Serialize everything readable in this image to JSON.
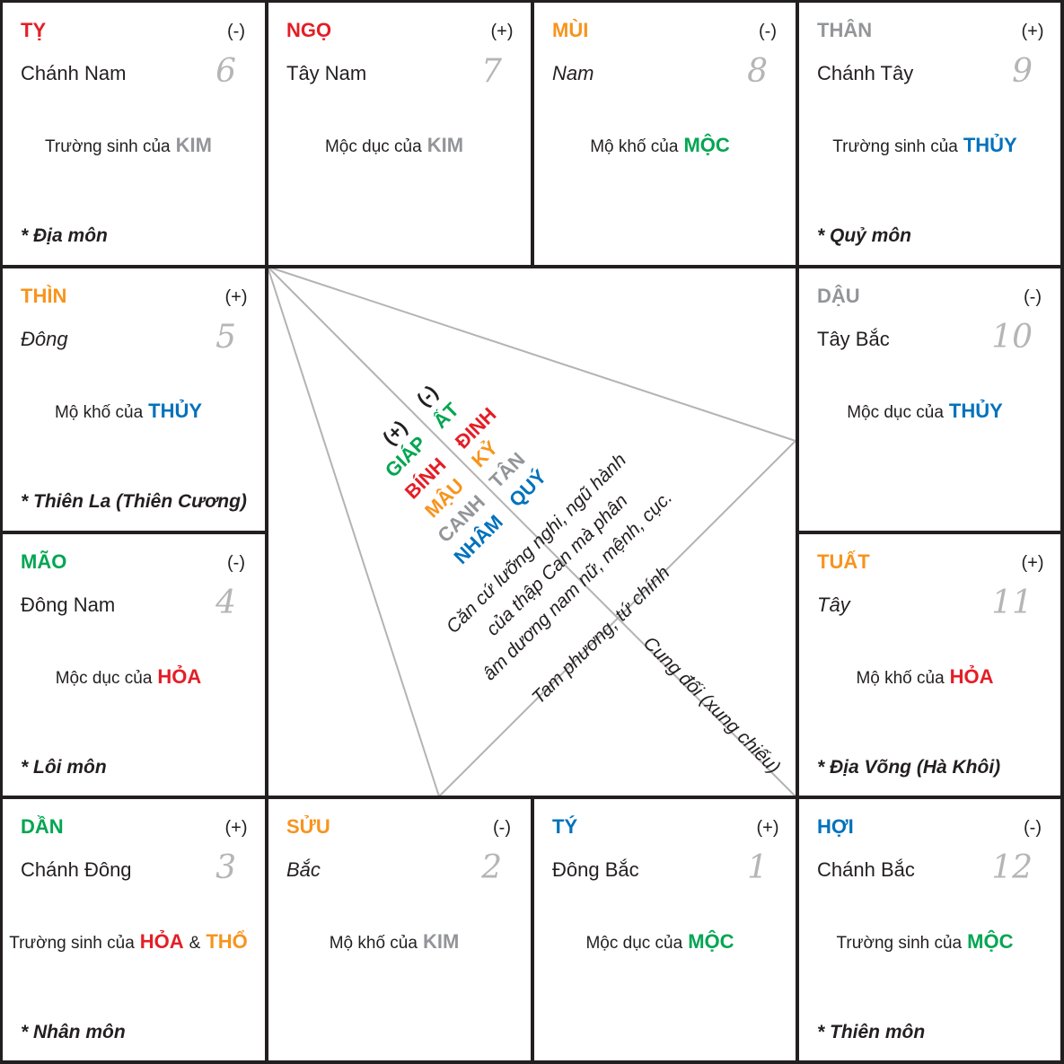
{
  "palaces": [
    {
      "name": "TỴ",
      "name_color": "#e41e26",
      "polarity": "(-)",
      "direction": "Chánh Nam",
      "number": 6,
      "stage": "Trường sinh của",
      "elements": [
        {
          "text": "KIM",
          "color": "#939598"
        }
      ],
      "gate": "* Địa môn"
    },
    {
      "name": "NGỌ",
      "name_color": "#e41e26",
      "polarity": "(+)",
      "direction": "Tây Nam",
      "number": 7,
      "stage": "Mộc dục của",
      "elements": [
        {
          "text": "KIM",
          "color": "#939598"
        }
      ]
    },
    {
      "name": "MÙI",
      "name_color": "#f7941d",
      "polarity": "(-)",
      "direction": "Nam",
      "number": 8,
      "stage": "Mộ khố của",
      "elements": [
        {
          "text": "MỘC",
          "color": "#00a651"
        }
      ]
    },
    {
      "name": "THÂN",
      "name_color": "#939598",
      "polarity": "(+)",
      "direction": "Chánh Tây",
      "number": 9,
      "stage": "Trường sinh của",
      "elements": [
        {
          "text": "THỦY",
          "color": "#0072bc"
        }
      ],
      "gate": "* Quỷ môn"
    },
    {
      "name": "THÌN",
      "name_color": "#f7941d",
      "polarity": "(+)",
      "direction": "Đông",
      "number": 5,
      "stage": "Mộ khố của",
      "elements": [
        {
          "text": "THỦY",
          "color": "#0072bc"
        }
      ],
      "gate": "* Thiên La (Thiên Cương)"
    },
    {
      "name": "DẬU",
      "name_color": "#939598",
      "polarity": "(-)",
      "direction": "Tây Bắc",
      "number": 10,
      "stage": "Mộc dục của",
      "elements": [
        {
          "text": "THỦY",
          "color": "#0072bc"
        }
      ]
    },
    {
      "name": "MÃO",
      "name_color": "#00a651",
      "polarity": "(-)",
      "direction": "Đông Nam",
      "number": 4,
      "stage": "Mộc dục của",
      "elements": [
        {
          "text": "HỎA",
          "color": "#e41e26"
        }
      ],
      "gate": "* Lôi môn"
    },
    {
      "name": "TUẤT",
      "name_color": "#f7941d",
      "polarity": "(+)",
      "direction": "Tây",
      "number": 11,
      "stage": "Mộ khố của",
      "elements": [
        {
          "text": "HỎA",
          "color": "#e41e26"
        }
      ],
      "gate": "* Địa Võng (Hà Khôi)"
    },
    {
      "name": "DẦN",
      "name_color": "#00a651",
      "polarity": "(+)",
      "direction": "Chánh Đông",
      "number": 3,
      "stage": "Trường sinh của",
      "elements": [
        {
          "text": "HỎA",
          "color": "#e41e26"
        },
        {
          "text": "THỔ",
          "color": "#f7941d"
        }
      ],
      "joiner": "&",
      "gate": "* Nhân môn"
    },
    {
      "name": "SỬU",
      "name_color": "#f7941d",
      "polarity": "(-)",
      "direction": "Bắc",
      "number": 2,
      "stage": "Mộ khố của",
      "elements": [
        {
          "text": "KIM",
          "color": "#939598"
        }
      ]
    },
    {
      "name": "TÝ",
      "name_color": "#0072bc",
      "polarity": "(+)",
      "direction": "Đông Bắc",
      "number": 1,
      "stage": "Mộc dục của",
      "elements": [
        {
          "text": "MỘC",
          "color": "#00a651"
        }
      ]
    },
    {
      "name": "HỢI",
      "name_color": "#0072bc",
      "polarity": "(-)",
      "direction": "Chánh Bắc",
      "number": 12,
      "stage": "Trường sinh của",
      "elements": [
        {
          "text": "MỘC",
          "color": "#00a651"
        }
      ],
      "gate": "* Thiên môn"
    }
  ],
  "center": {
    "stems": [
      {
        "polarity": "(+)",
        "items": [
          {
            "text": "GIÁP",
            "color": "#00a651"
          },
          {
            "text": "BÍNH",
            "color": "#e41e26"
          },
          {
            "text": "MẬU",
            "color": "#f7941d"
          },
          {
            "text": "CANH",
            "color": "#939598"
          },
          {
            "text": "NHÂM",
            "color": "#0072bc"
          }
        ]
      },
      {
        "polarity": "(-)",
        "items": [
          {
            "text": "ẤT",
            "color": "#00a651"
          },
          {
            "text": "ĐINH",
            "color": "#e41e26"
          },
          {
            "text": "KỶ",
            "color": "#f7941d"
          },
          {
            "text": "TÂN",
            "color": "#939598"
          },
          {
            "text": "QUÝ",
            "color": "#0072bc"
          }
        ]
      }
    ],
    "note": [
      "Căn cứ lưỡng nghi, ngũ hành",
      "của thập Can mà phân",
      "âm dương nam nữ, mệnh, cục."
    ],
    "triad": "Tam phương, tứ chính",
    "opposite": "Cung đối (xung chiếu)"
  }
}
